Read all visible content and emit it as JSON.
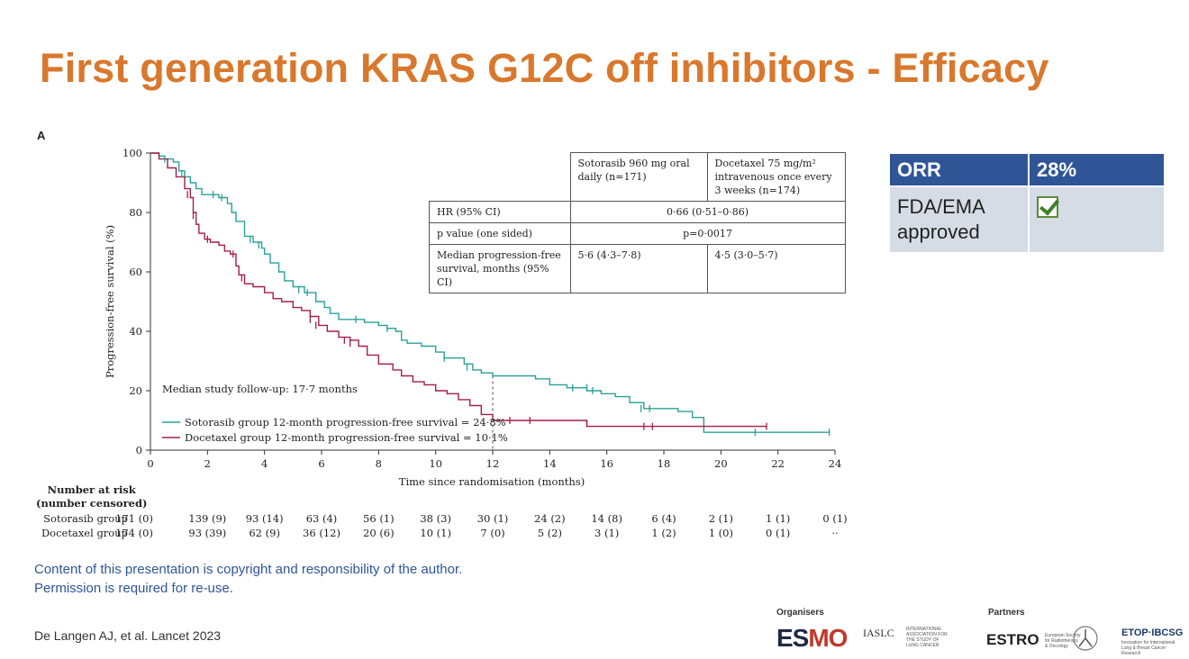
{
  "slide": {
    "title": "First generation KRAS G12C off inhibitors - Efficacy",
    "panel_label": "A",
    "copyright_line1": "Content of this presentation is copyright and responsibility of the author.",
    "copyright_line2": "Permission is required for re-use.",
    "citation": "De Langen AJ, et al. Lancet 2023",
    "organisers_label": "Organisers",
    "partners_label": "Partners",
    "logos": {
      "esmo_es": "ES",
      "esmo_mo": "MO",
      "iaslc": "IASLC",
      "iaslc_small": "INTERNATIONAL ASSOCIATION FOR THE STUDY OF LUNG CANCER",
      "estro": "ESTRO",
      "estro_small": "European Society for Radiotherapy & Oncology",
      "etop": "ETOP·IBCSG",
      "etop_small": "Innovation for International Lung & Breast Cancer Research"
    }
  },
  "orr_table": {
    "header_label": "ORR",
    "header_value": "28%",
    "approval_label_1": "FDA/EMA",
    "approval_label_2": "approved",
    "approval_checked": true,
    "header_color": "#2f5597",
    "row_color": "#d6dce5"
  },
  "stats_table": {
    "col1_header": "Sotorasib 960 mg oral daily (n=171)",
    "col2_header": "Docetaxel 75 mg/m² intravenous once every 3 weeks (n=174)",
    "hr_label": "HR (95% CI)",
    "hr_value": "0·66 (0·51–0·86)",
    "p_label": "p value (one sided)",
    "p_value": "p=0·0017",
    "median_label": "Median progression-free survival, months (95% CI)",
    "median_soto": "5·6 (4·3–7·8)",
    "median_doce": "4·5 (3·0–5·7)"
  },
  "chart_data": {
    "type": "line",
    "subtype": "kaplan-meier",
    "title": "",
    "xlabel": "Time since randomisation (months)",
    "ylabel": "Progression-free survival (%)",
    "xlim": [
      0,
      24
    ],
    "ylim": [
      0,
      100
    ],
    "xticks": [
      0,
      2,
      4,
      6,
      8,
      10,
      12,
      14,
      16,
      18,
      20,
      22,
      24
    ],
    "yticks": [
      0,
      20,
      40,
      60,
      80,
      100
    ],
    "annotation": "Median study follow-up: 17·7 months",
    "reference_line_x": 12,
    "series": [
      {
        "name": "Sotorasib group 12-month progression-free survival = 24·8%",
        "color": "#2aa198",
        "x": [
          0,
          0.3,
          0.5,
          0.8,
          1.0,
          1.2,
          1.4,
          1.6,
          1.8,
          2.1,
          2.4,
          2.7,
          2.85,
          3.0,
          3.3,
          3.6,
          3.9,
          4.0,
          4.2,
          4.5,
          4.7,
          5.0,
          5.4,
          5.6,
          5.8,
          6.1,
          6.3,
          6.6,
          7.0,
          7.5,
          8.0,
          8.3,
          8.6,
          8.8,
          9.0,
          9.5,
          10.0,
          10.3,
          10.5,
          11.0,
          11.3,
          11.6,
          12.0,
          12.5,
          13.0,
          13.5,
          14.0,
          14.6,
          15.0,
          15.3,
          15.8,
          16.3,
          16.8,
          17.3,
          17.8,
          18.5,
          19.0,
          19.4,
          20.0,
          21.0,
          22.0,
          23.0,
          23.8
        ],
        "y": [
          100,
          99,
          98,
          97,
          94,
          92,
          90,
          88,
          86,
          86,
          85,
          83,
          80,
          77,
          72,
          70,
          68,
          66,
          63,
          60,
          57,
          55,
          53,
          53,
          50,
          48,
          46,
          44,
          44,
          43,
          42,
          41,
          40,
          37,
          36,
          35,
          33,
          31,
          31,
          29,
          27,
          26,
          25,
          25,
          25,
          24,
          22,
          21,
          21,
          20,
          19,
          18,
          16,
          14,
          14,
          13,
          11,
          6,
          6,
          6,
          6,
          6,
          6
        ]
      },
      {
        "name": "Docetaxel group 12-month progression-free survival = 10·1%",
        "color": "#a61d4a",
        "x": [
          0,
          0.3,
          0.6,
          0.9,
          1.2,
          1.4,
          1.5,
          1.6,
          1.7,
          1.9,
          2.1,
          2.4,
          2.6,
          2.8,
          3.0,
          3.1,
          3.3,
          3.6,
          4.0,
          4.3,
          4.6,
          5.0,
          5.3,
          5.6,
          5.9,
          6.2,
          6.6,
          7.0,
          7.3,
          7.6,
          8.0,
          8.5,
          8.8,
          9.2,
          9.6,
          10.0,
          10.4,
          10.8,
          11.2,
          11.6,
          12.0,
          13.0,
          14.0,
          15.0,
          15.3,
          16.0,
          17.0,
          18.0,
          19.0,
          20.0,
          21.0,
          21.6
        ],
        "y": [
          100,
          98,
          95,
          92,
          88,
          85,
          80,
          76,
          73,
          71,
          70,
          69,
          67,
          66,
          62,
          59,
          56,
          55,
          53,
          51,
          50,
          48,
          47,
          45,
          42,
          40,
          38,
          37,
          35,
          32,
          29,
          27,
          25,
          23,
          22,
          20,
          19,
          17,
          15,
          12,
          10,
          10,
          10,
          10,
          8,
          8,
          8,
          8,
          8,
          8,
          8,
          8
        ]
      }
    ],
    "censor_marks": {
      "sotorasib": [
        [
          0.5,
          98
        ],
        [
          1.1,
          93
        ],
        [
          2.2,
          86
        ],
        [
          2.5,
          85
        ],
        [
          3.5,
          71
        ],
        [
          3.8,
          69
        ],
        [
          5.2,
          54
        ],
        [
          5.5,
          53
        ],
        [
          7.2,
          44
        ],
        [
          8.3,
          41
        ],
        [
          10.3,
          31
        ],
        [
          11.1,
          28
        ],
        [
          14.8,
          21
        ],
        [
          15.3,
          21
        ],
        [
          15.5,
          20
        ],
        [
          17.2,
          14
        ],
        [
          17.5,
          14
        ],
        [
          21.2,
          6
        ],
        [
          23.8,
          6
        ]
      ],
      "docetaxel": [
        [
          1.3,
          86
        ],
        [
          1.5,
          79
        ],
        [
          2.0,
          71
        ],
        [
          2.9,
          66
        ],
        [
          3.2,
          58
        ],
        [
          5.6,
          44
        ],
        [
          5.8,
          42
        ],
        [
          6.8,
          37
        ],
        [
          7.0,
          36
        ],
        [
          12.6,
          10
        ],
        [
          13.3,
          10
        ],
        [
          15.3,
          9
        ],
        [
          17.3,
          8
        ],
        [
          17.6,
          8
        ],
        [
          21.6,
          8
        ]
      ]
    },
    "risk_table": {
      "header_line1": "Number at risk",
      "header_line2": "(number censored)",
      "times": [
        0,
        2,
        4,
        6,
        8,
        10,
        12,
        14,
        16,
        18,
        20,
        22,
        24
      ],
      "rows": [
        {
          "label": "Sotorasib group",
          "values": [
            "171 (0)",
            "139 (9)",
            "93 (14)",
            "63 (4)",
            "56 (1)",
            "38 (3)",
            "30 (1)",
            "24 (2)",
            "14 (8)",
            "6 (4)",
            "2 (1)",
            "1 (1)",
            "0 (1)"
          ]
        },
        {
          "label": "Docetaxel group",
          "values": [
            "174 (0)",
            "93 (39)",
            "62 (9)",
            "36 (12)",
            "20 (6)",
            "10 (1)",
            "7 (0)",
            "5 (2)",
            "3 (1)",
            "1 (2)",
            "1 (0)",
            "0 (1)",
            "··"
          ]
        }
      ]
    }
  }
}
